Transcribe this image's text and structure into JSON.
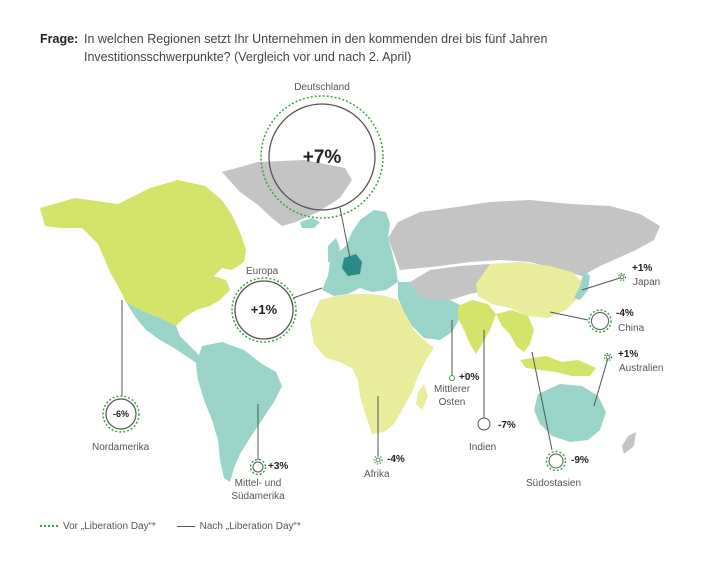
{
  "question": {
    "label": "Frage:",
    "line1": "In welchen Regionen setzt Ihr Unternehmen in den kommenden drei bis fünf Jahren",
    "line2": "Investitionsschwerpunkte? (Vergleich vor und nach 2. April)"
  },
  "colors": {
    "positive_region": "#9ad4c9",
    "lime_region": "#d4e36a",
    "pale_region": "#e9ec9a",
    "neutral_region": "#c4c4c4",
    "germany": "#2a8a86",
    "before_circle": "#3aa341",
    "after_circle": "#666666"
  },
  "regions": [
    {
      "id": "deutschland",
      "name": "Deutschland",
      "value": "+7%"
    },
    {
      "id": "europa",
      "name": "Europa",
      "value": "+1%"
    },
    {
      "id": "nordamerika",
      "name": "Nordamerika",
      "value": "-6%"
    },
    {
      "id": "mittel-suedamerika",
      "name_line1": "Mittel- und",
      "name_line2": "Südamerika",
      "value": "+3%"
    },
    {
      "id": "afrika",
      "name": "Afrika",
      "value": "-4%"
    },
    {
      "id": "mittlerer-osten",
      "name_line1": "Mittlerer",
      "name_line2": "Osten",
      "value": "+0%"
    },
    {
      "id": "indien",
      "name": "Indien",
      "value": "-7%"
    },
    {
      "id": "suedostasien",
      "name": "Südostasien",
      "value": "-9%"
    },
    {
      "id": "china",
      "name": "China",
      "value": "-4%"
    },
    {
      "id": "japan",
      "name": "Japan",
      "value": "+1%"
    },
    {
      "id": "australien",
      "name": "Australien",
      "value": "+1%"
    }
  ],
  "legend": {
    "before": "Vor „Liberation Day“*",
    "after": "Nach „Liberation Day“*"
  }
}
